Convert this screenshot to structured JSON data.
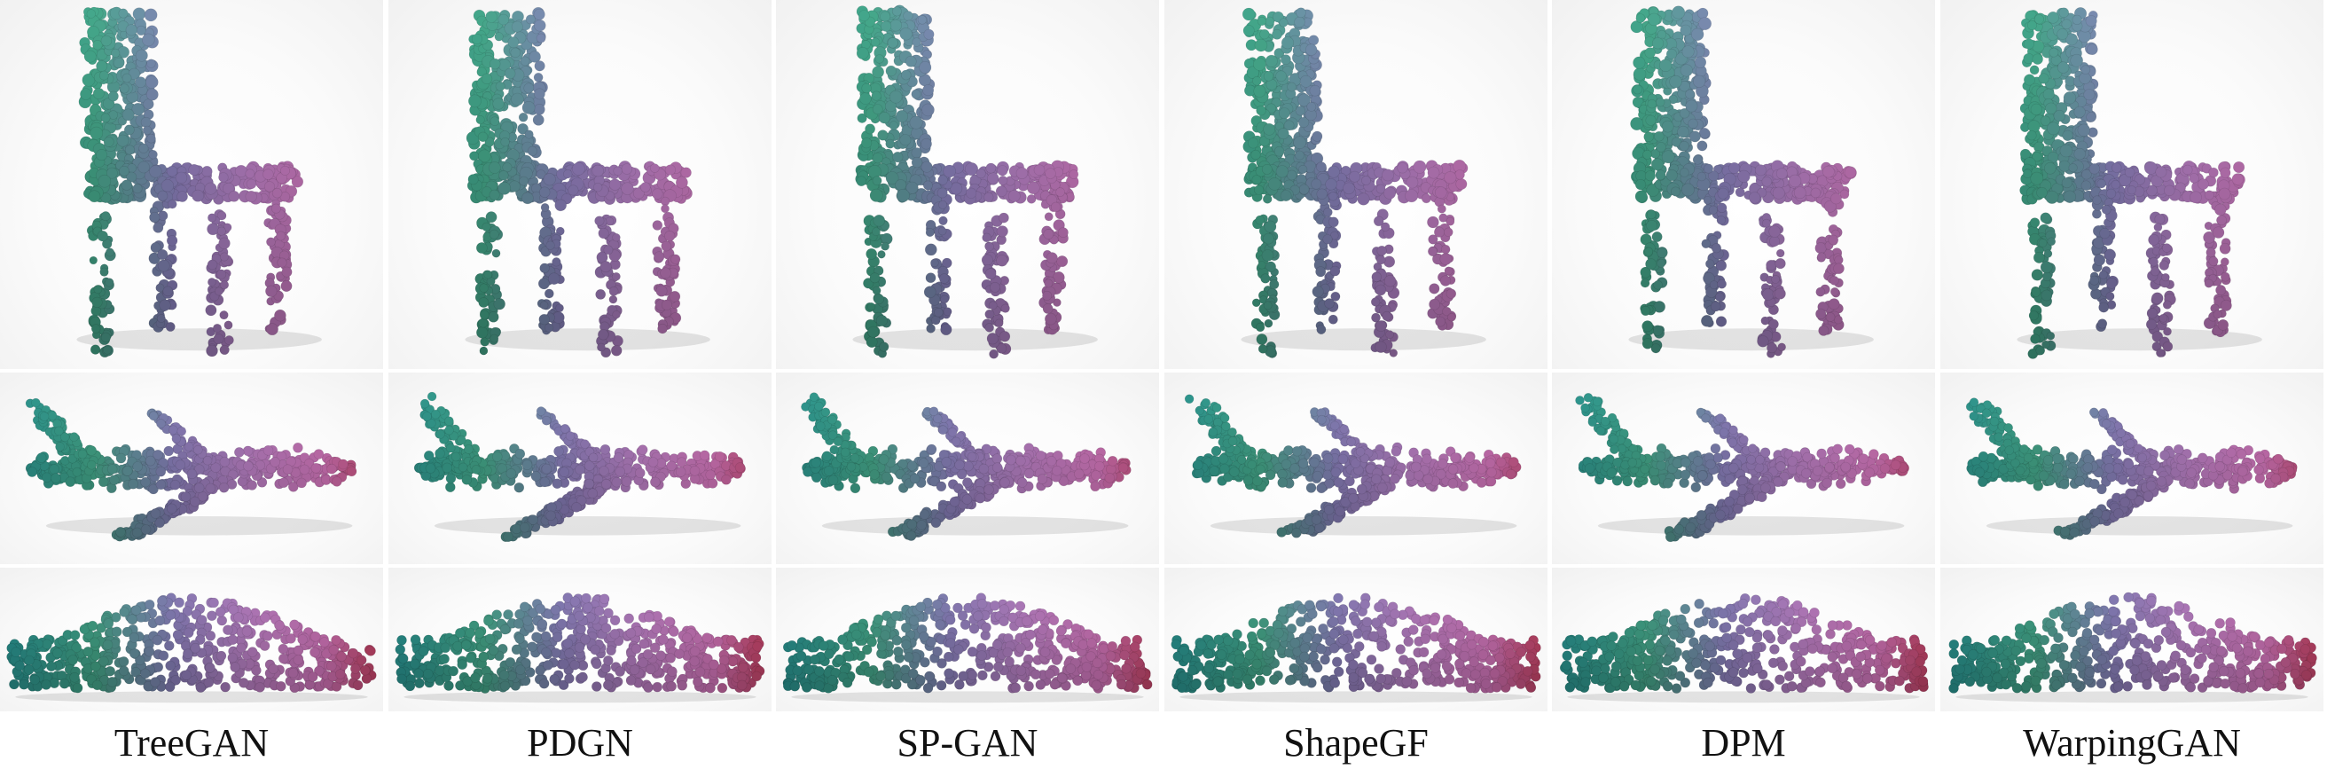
{
  "figure": {
    "methods": [
      {
        "name": "TreeGAN"
      },
      {
        "name": "PDGN"
      },
      {
        "name": "SP-GAN"
      },
      {
        "name": "ShapeGF"
      },
      {
        "name": "DPM"
      },
      {
        "name": "WarpingGAN"
      }
    ],
    "rows": [
      {
        "category": "chair"
      },
      {
        "category": "airplane"
      },
      {
        "category": "car"
      }
    ]
  }
}
